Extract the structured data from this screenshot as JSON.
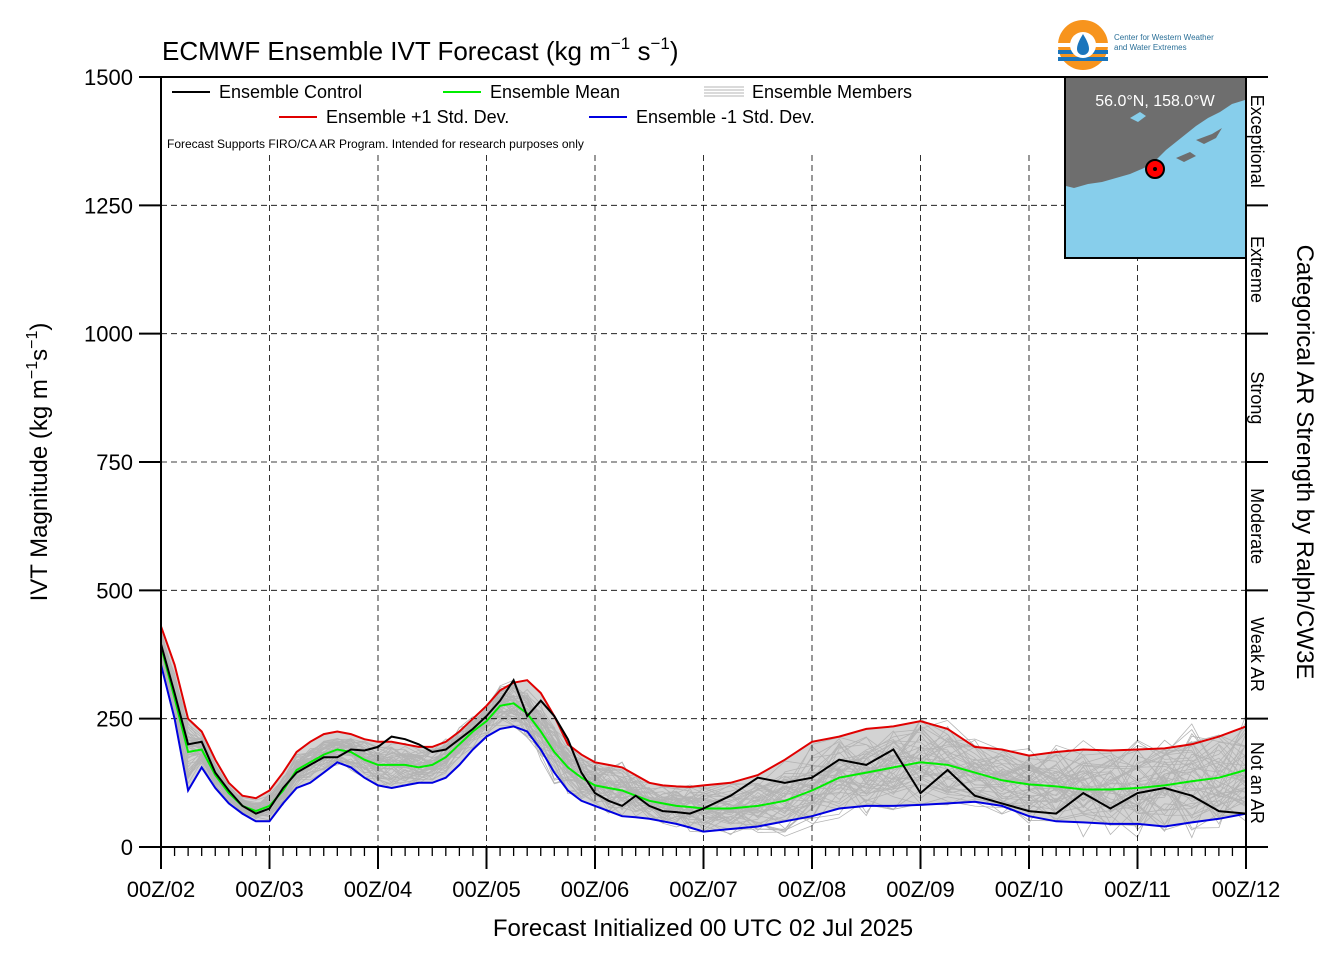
{
  "chart_data": {
    "type": "line",
    "title_main": "ECMWF Ensemble IVT Forecast (kg m",
    "title_exp": "−1",
    "title_mid": " s",
    "title_exp2": "−1",
    "title_close": ")",
    "xlabel": "Forecast Initialized 00 UTC 02 Jul 2025",
    "ylabel_main": "IVT Magnitude (kg m",
    "ylabel_exp": "−1",
    "ylabel_mid": "s",
    "ylabel_exp2": "−1",
    "ylabel_close": ")",
    "right_axis_title": "Categorical AR Strength by Ralph/CW3E",
    "disclaimer": "Forecast Supports FIRO/CA AR Program. Intended for research purposes only",
    "x_tick_labels": [
      "00Z/02",
      "00Z/03",
      "00Z/04",
      "00Z/05",
      "00Z/06",
      "00Z/07",
      "00Z/08",
      "00Z/09",
      "00Z/10",
      "00Z/11",
      "00Z/12"
    ],
    "x_range_days": [
      0,
      10
    ],
    "y_ticks": [
      0,
      250,
      500,
      750,
      1000,
      1250,
      1500
    ],
    "ylim": [
      0,
      1500
    ],
    "categories": [
      {
        "label": "Not an AR",
        "range": [
          0,
          250
        ]
      },
      {
        "label": "Weak AR",
        "range": [
          250,
          500
        ]
      },
      {
        "label": "Moderate",
        "range": [
          500,
          750
        ]
      },
      {
        "label": "Strong",
        "range": [
          750,
          1000
        ]
      },
      {
        "label": "Extreme",
        "range": [
          1000,
          1250
        ]
      },
      {
        "label": "Exceptional",
        "range": [
          1250,
          1500
        ]
      }
    ],
    "grid": true,
    "legend_position": "top-left",
    "legend": {
      "control": "Ensemble Control",
      "mean": "Ensemble Mean",
      "members": "Ensemble Members",
      "plus_std": "Ensemble +1 Std. Dev.",
      "minus_std": "Ensemble -1 Std. Dev."
    },
    "colors": {
      "control": "#000000",
      "mean": "#00ee00",
      "members": "#b4b4b4",
      "plus_std": "#e00000",
      "minus_std": "#0000e0",
      "spread": "#d3d3d3"
    },
    "x": [
      0,
      0.125,
      0.25,
      0.375,
      0.5,
      0.625,
      0.75,
      0.875,
      1,
      1.125,
      1.25,
      1.375,
      1.5,
      1.625,
      1.75,
      1.875,
      2,
      2.125,
      2.25,
      2.375,
      2.5,
      2.625,
      2.75,
      2.875,
      3,
      3.125,
      3.25,
      3.375,
      3.5,
      3.625,
      3.75,
      3.875,
      4,
      4.125,
      4.25,
      4.375,
      4.5,
      4.625,
      4.75,
      4.875,
      5,
      5.25,
      5.5,
      5.75,
      6,
      6.25,
      6.5,
      6.75,
      7,
      7.25,
      7.5,
      7.75,
      8,
      8.25,
      8.5,
      8.75,
      9,
      9.25,
      9.5,
      9.75,
      10
    ],
    "series": [
      {
        "name": "Ensemble Control",
        "values": [
          395,
          300,
          200,
          205,
          145,
          110,
          80,
          65,
          75,
          115,
          145,
          160,
          175,
          175,
          190,
          188,
          195,
          215,
          210,
          200,
          185,
          190,
          210,
          230,
          255,
          285,
          325,
          255,
          285,
          255,
          210,
          145,
          105,
          90,
          80,
          100,
          80,
          70,
          68,
          65,
          75,
          100,
          135,
          125,
          135,
          170,
          160,
          190,
          105,
          150,
          100,
          85,
          70,
          65,
          105,
          75,
          105,
          115,
          100,
          70,
          65
        ]
      },
      {
        "name": "Ensemble Mean",
        "values": [
          390,
          290,
          185,
          190,
          140,
          105,
          80,
          70,
          80,
          110,
          150,
          165,
          180,
          190,
          185,
          170,
          160,
          160,
          160,
          155,
          160,
          175,
          200,
          225,
          245,
          275,
          280,
          260,
          225,
          185,
          155,
          135,
          120,
          115,
          110,
          100,
          90,
          85,
          80,
          78,
          75,
          75,
          80,
          90,
          110,
          135,
          145,
          155,
          165,
          160,
          145,
          130,
          122,
          118,
          112,
          112,
          115,
          120,
          128,
          135,
          150
        ]
      },
      {
        "name": "Ensemble +1 Std. Dev.",
        "values": [
          430,
          355,
          250,
          225,
          170,
          125,
          100,
          95,
          110,
          145,
          185,
          205,
          220,
          225,
          220,
          210,
          205,
          205,
          200,
          195,
          195,
          205,
          225,
          250,
          275,
          305,
          320,
          325,
          300,
          255,
          200,
          180,
          165,
          160,
          155,
          140,
          125,
          120,
          118,
          117,
          120,
          125,
          140,
          170,
          205,
          215,
          230,
          235,
          245,
          230,
          195,
          190,
          178,
          185,
          190,
          188,
          190,
          192,
          200,
          215,
          235
        ]
      },
      {
        "name": "Ensemble -1 Std. Dev.",
        "values": [
          355,
          250,
          110,
          155,
          115,
          85,
          65,
          50,
          50,
          85,
          115,
          125,
          145,
          165,
          155,
          135,
          120,
          115,
          120,
          125,
          125,
          135,
          160,
          190,
          215,
          230,
          235,
          225,
          190,
          145,
          110,
          90,
          80,
          70,
          60,
          58,
          55,
          50,
          45,
          38,
          30,
          35,
          40,
          50,
          60,
          75,
          80,
          80,
          82,
          85,
          88,
          80,
          60,
          50,
          48,
          45,
          45,
          40,
          48,
          55,
          65
        ]
      }
    ]
  },
  "logo": {
    "line1": "Center for Western Weather",
    "line2": "and Water Extremes"
  },
  "inset_map": {
    "location": "56.0°N, 158.0°W",
    "land_color": "#6e6e6e",
    "water_color": "#87ceeb",
    "marker_color": "#ff0000"
  }
}
